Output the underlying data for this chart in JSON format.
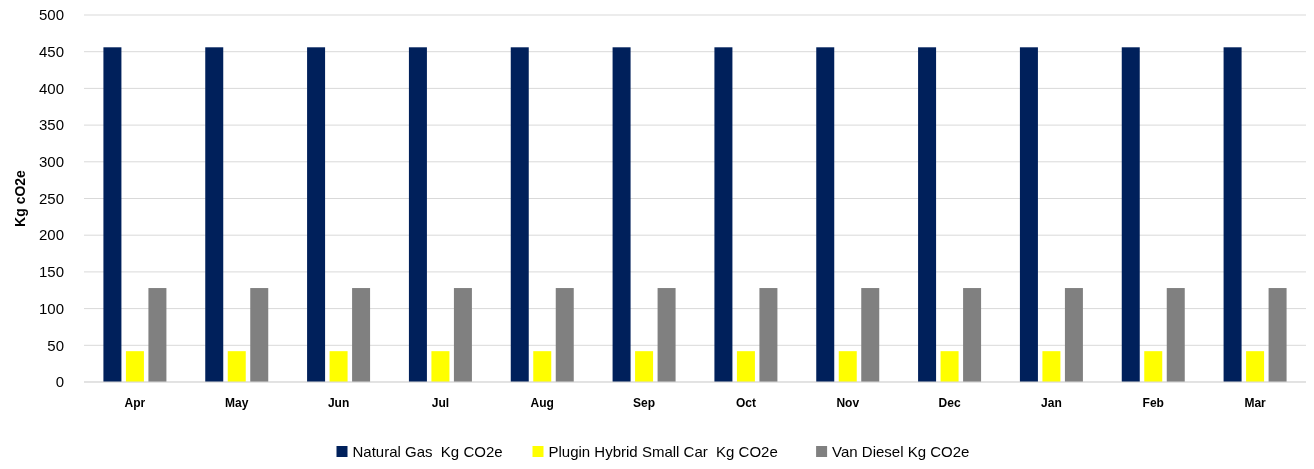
{
  "chart_data": {
    "type": "bar",
    "ylabel": "Kg cO2e",
    "categories": [
      "Apr",
      "May",
      "Jun",
      "Jul",
      "Aug",
      "Sep",
      "Oct",
      "Nov",
      "Dec",
      "Jan",
      "Feb",
      "Mar"
    ],
    "series": [
      {
        "name": "Natural Gas  Kg CO2e",
        "color": "#00205b",
        "values": [
          456,
          456,
          456,
          456,
          456,
          456,
          456,
          456,
          456,
          456,
          456,
          456
        ]
      },
      {
        "name": "Plugin Hybrid Small Car  Kg CO2e",
        "color": "#ffff00",
        "values": [
          42,
          42,
          42,
          42,
          42,
          42,
          42,
          42,
          42,
          42,
          42,
          42
        ]
      },
      {
        "name": "Van Diesel Kg CO2e",
        "color": "#808080",
        "values": [
          128,
          128,
          128,
          128,
          128,
          128,
          128,
          128,
          128,
          128,
          128,
          128
        ]
      }
    ],
    "ylim": [
      0,
      500
    ],
    "yticks": [
      0,
      50,
      100,
      150,
      200,
      250,
      300,
      350,
      400,
      450,
      500
    ],
    "grid": "y",
    "legend": "bottom"
  }
}
